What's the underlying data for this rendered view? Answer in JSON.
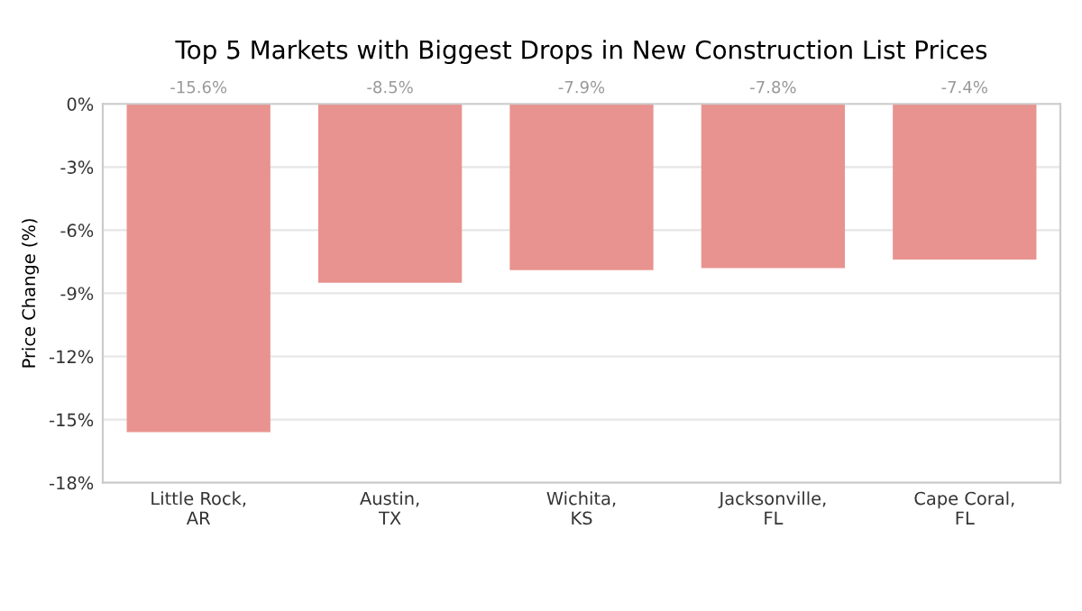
{
  "chart_data": {
    "type": "bar",
    "title": "Top 5 Markets with Biggest Drops in New Construction List Prices",
    "ylabel": "Price Change (%)",
    "categories": [
      "Little Rock,\nAR",
      "Austin,\nTX",
      "Wichita,\nKS",
      "Jacksonville,\nFL",
      "Cape Coral,\nFL"
    ],
    "values": [
      -15.6,
      -8.5,
      -7.9,
      -7.8,
      -7.4
    ],
    "value_labels": [
      "-15.6%",
      "-8.5%",
      "-7.9%",
      "-7.8%",
      "-7.4%"
    ],
    "color": "#e8938f",
    "ylim": [
      -18,
      0
    ],
    "yticks": [
      {
        "value": 0,
        "label": "0%"
      },
      {
        "value": -3,
        "label": "-3%"
      },
      {
        "value": -6,
        "label": "-6%"
      },
      {
        "value": -9,
        "label": "-9%"
      },
      {
        "value": -12,
        "label": "-12%"
      },
      {
        "value": -15,
        "label": "-15%"
      },
      {
        "value": -18,
        "label": "-18%"
      }
    ],
    "grid": "y"
  }
}
